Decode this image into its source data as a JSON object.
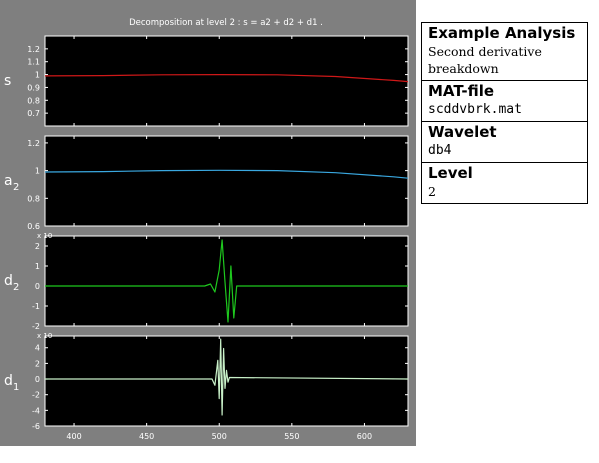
{
  "figure": {
    "title": "Decomposition at level 2 : s = a2 + d2 + d1 .",
    "x_tick_labels": [
      "400",
      "450",
      "500",
      "550",
      "600"
    ],
    "colors": {
      "background": "#7f7f7f",
      "axes": "#000000",
      "frame": "#ffffff"
    }
  },
  "chart_data": [
    {
      "type": "line",
      "panel_label": "s",
      "series": [
        {
          "color": "#d01818",
          "x": [
            380,
            420,
            460,
            500,
            540,
            580,
            620,
            630
          ],
          "y": [
            0.99,
            0.992,
            0.998,
            1.0,
            0.998,
            0.985,
            0.955,
            0.945
          ]
        }
      ],
      "xlim": [
        380,
        630
      ],
      "ylim": [
        0.6,
        1.3
      ],
      "yticks": [
        "1.2",
        "1.1",
        "1",
        "0.9",
        "0.8",
        "0.7"
      ]
    },
    {
      "type": "line",
      "panel_label": "a",
      "panel_label_sub": "2",
      "series": [
        {
          "color": "#3aa8e0",
          "x": [
            380,
            420,
            460,
            500,
            540,
            580,
            620,
            630
          ],
          "y": [
            0.99,
            0.993,
            1.0,
            1.002,
            1.0,
            0.985,
            0.955,
            0.945
          ]
        }
      ],
      "xlim": [
        380,
        630
      ],
      "ylim": [
        0.6,
        1.25
      ],
      "yticks": [
        "1.2",
        "1",
        "0.8",
        "0.6"
      ]
    },
    {
      "type": "line",
      "panel_label": "d",
      "panel_label_sub": "2",
      "exponent_label": "x 10",
      "series": [
        {
          "color": "#1ec81e",
          "x": [
            380,
            490,
            494,
            497,
            500,
            502,
            504,
            506,
            508,
            510,
            512,
            630
          ],
          "y": [
            0,
            0,
            0.1,
            -0.3,
            0.8,
            2.3,
            0.2,
            -1.8,
            1.0,
            -1.6,
            0,
            0
          ]
        }
      ],
      "xlim": [
        380,
        630
      ],
      "ylim": [
        -2,
        2.5
      ],
      "yticks": [
        "2",
        "1",
        "0",
        "-1",
        "-2"
      ]
    },
    {
      "type": "line",
      "panel_label": "d",
      "panel_label_sub": "1",
      "exponent_label": "x 10",
      "series": [
        {
          "color": "#c8f0c8",
          "x": [
            380,
            495,
            497,
            499,
            500,
            501,
            502,
            503,
            504,
            505,
            506,
            507,
            630
          ],
          "y": [
            0,
            0,
            -0.8,
            2.4,
            -2.5,
            5.1,
            -4.6,
            3.9,
            -1.2,
            1.1,
            -0.4,
            0.2,
            0
          ]
        }
      ],
      "xlim": [
        380,
        630
      ],
      "ylim": [
        -6,
        5.5
      ],
      "yticks": [
        "4",
        "2",
        "0",
        "-2",
        "-4",
        "-6"
      ]
    }
  ],
  "info_panel": {
    "example_header": "Example Analysis",
    "example_value": "Second derivative breakdown",
    "matfile_header": "MAT-file",
    "matfile_value": "scddvbrk.mat",
    "wavelet_header": "Wavelet",
    "wavelet_value": "db4",
    "level_header": "Level",
    "level_value": "2"
  }
}
